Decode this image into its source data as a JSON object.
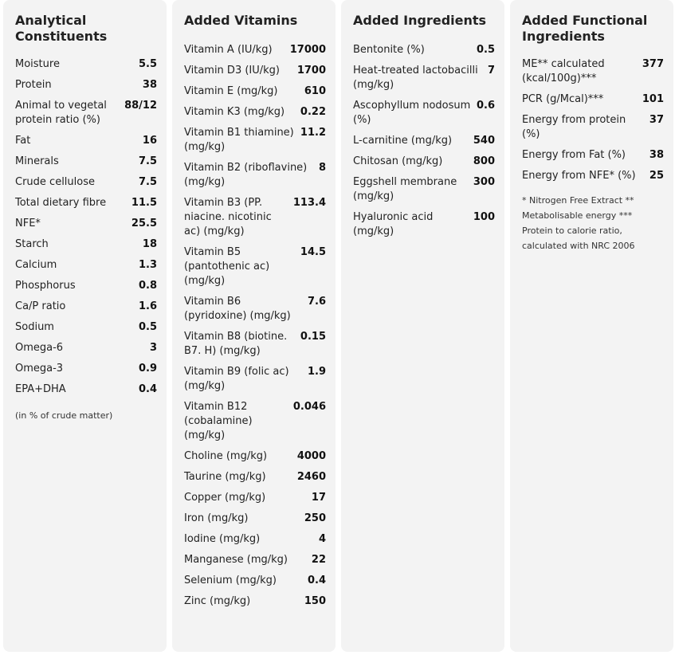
{
  "analytical": {
    "title": "Analytical Constituents",
    "rows": [
      {
        "label": "Moisture",
        "value": "5.5"
      },
      {
        "label": "Protein",
        "value": "38"
      },
      {
        "label": "Animal to vegetal protein ratio (%)",
        "value": "88/12"
      },
      {
        "label": "Fat",
        "value": "16"
      },
      {
        "label": "Minerals",
        "value": "7.5"
      },
      {
        "label": "Crude cellulose",
        "value": "7.5"
      },
      {
        "label": "Total dietary fibre",
        "value": "11.5"
      },
      {
        "label": "NFE*",
        "value": "25.5"
      },
      {
        "label": "Starch",
        "value": "18"
      },
      {
        "label": "Calcium",
        "value": "1.3"
      },
      {
        "label": "Phosphorus",
        "value": "0.8"
      },
      {
        "label": "Ca/P ratio",
        "value": "1.6"
      },
      {
        "label": "Sodium",
        "value": "0.5"
      },
      {
        "label": "Omega-6",
        "value": "3"
      },
      {
        "label": "Omega-3",
        "value": "0.9"
      },
      {
        "label": "EPA+DHA",
        "value": "0.4"
      }
    ],
    "note": "(in % of crude matter)"
  },
  "vitamins": {
    "title": "Added Vitamins",
    "rows": [
      {
        "label": "Vitamin A (IU/kg)",
        "value": "17000"
      },
      {
        "label": "Vitamin D3 (IU/kg)",
        "value": "1700"
      },
      {
        "label": "Vitamin E (mg/kg)",
        "value": "610"
      },
      {
        "label": "Vitamin K3 (mg/kg)",
        "value": "0.22"
      },
      {
        "label": "Vitamin B1 thiamine) (mg/kg)",
        "value": "11.2"
      },
      {
        "label": "Vitamin B2 (riboflavine) (mg/kg)",
        "value": "8"
      },
      {
        "label": "Vitamin B3 (PP. niacine. nicotinic ac) (mg/kg)",
        "value": "113.4"
      },
      {
        "label": "Vitamin B5 (pantothenic ac) (mg/kg)",
        "value": "14.5"
      },
      {
        "label": "Vitamin B6 (pyridoxine) (mg/kg)",
        "value": "7.6"
      },
      {
        "label": "Vitamin B8 (biotine. B7. H) (mg/kg)",
        "value": "0.15"
      },
      {
        "label": "Vitamin B9 (folic ac) (mg/kg)",
        "value": "1.9"
      },
      {
        "label": "Vitamin B12 (cobalamine) (mg/kg)",
        "value": "0.046"
      },
      {
        "label": "Choline (mg/kg)",
        "value": "4000"
      },
      {
        "label": "Taurine (mg/kg)",
        "value": "2460"
      },
      {
        "label": "Copper (mg/kg)",
        "value": "17"
      },
      {
        "label": "Iron (mg/kg)",
        "value": "250"
      },
      {
        "label": "Iodine (mg/kg)",
        "value": "4"
      },
      {
        "label": "Manganese (mg/kg)",
        "value": "22"
      },
      {
        "label": "Selenium (mg/kg)",
        "value": "0.4"
      },
      {
        "label": "Zinc (mg/kg)",
        "value": "150"
      }
    ]
  },
  "ingredients": {
    "title": "Added Ingredients",
    "rows": [
      {
        "label": "Bentonite (%)",
        "value": "0.5"
      },
      {
        "label": "Heat-treated lactobacilli (mg/kg)",
        "value": "7"
      },
      {
        "label": "Ascophyllum nodosum (%)",
        "value": "0.6"
      },
      {
        "label": "L-carnitine (mg/kg)",
        "value": "540"
      },
      {
        "label": "Chitosan (mg/kg)",
        "value": "800"
      },
      {
        "label": "Eggshell membrane (mg/kg)",
        "value": "300"
      },
      {
        "label": "Hyaluronic acid (mg/kg)",
        "value": "100"
      }
    ]
  },
  "functional": {
    "title": "Added Functional Ingredients",
    "rows": [
      {
        "label": "ME** calculated (kcal/100g)***",
        "value": "377"
      },
      {
        "label": "PCR (g/Mcal)***",
        "value": "101"
      },
      {
        "label": "Energy from protein (%)",
        "value": "37"
      },
      {
        "label": "Energy from Fat (%)",
        "value": "38"
      },
      {
        "label": "Energy from NFE* (%)",
        "value": "25"
      }
    ],
    "note": "* Nitrogen Free Extract ** Metabolisable energy *** Protein to calorie ratio, calculated with NRC 2006"
  }
}
